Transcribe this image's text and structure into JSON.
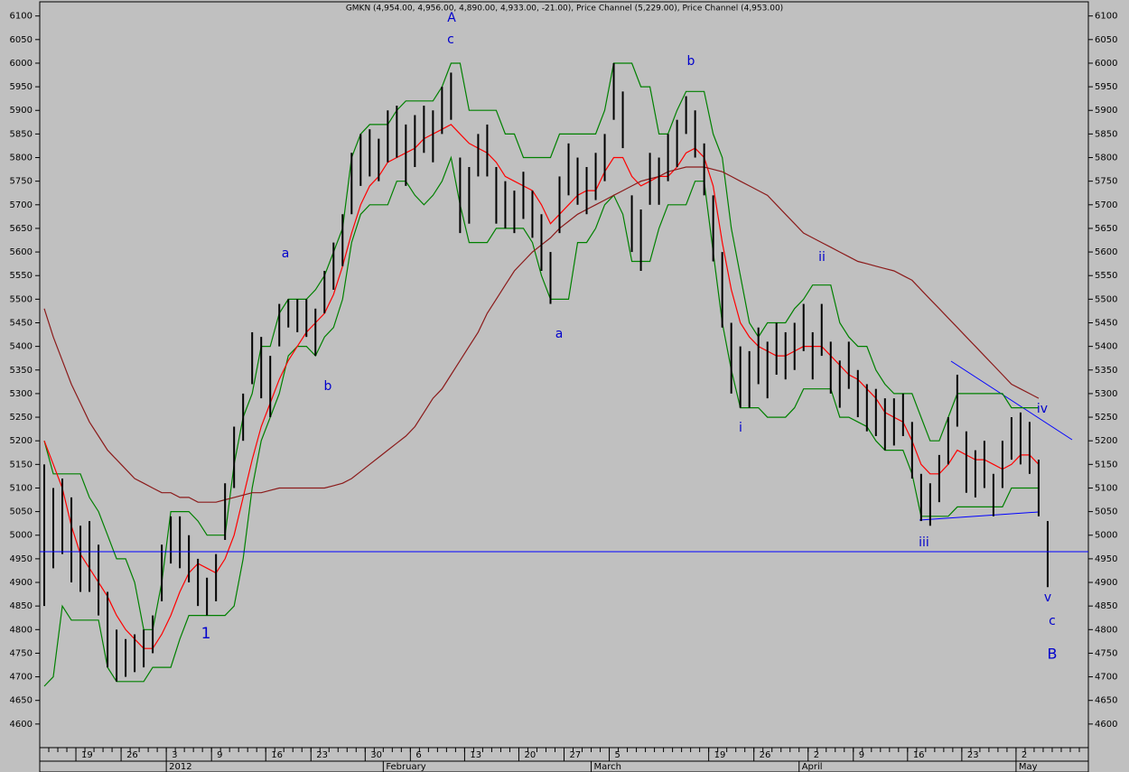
{
  "chart_data": {
    "type": "ohlc",
    "title": "GMKN (4,954.00, 4,956.00, 4,890.00, 4,933.00, -21.00), Price Channel (5,229.00), Price Channel (4,953.00)",
    "categories": [
      null,
      null,
      null,
      null,
      "19",
      null,
      null,
      null,
      null,
      "26",
      null,
      null,
      null,
      null,
      "3",
      null,
      null,
      null,
      null,
      "9",
      null,
      null,
      null,
      null,
      null,
      "16",
      null,
      null,
      null,
      null,
      "23",
      null,
      null,
      null,
      null,
      null,
      "30",
      null,
      null,
      null,
      null,
      "6",
      null,
      null,
      null,
      null,
      null,
      "13",
      null,
      null,
      null,
      null,
      null,
      "20",
      null,
      null,
      null,
      null,
      "27",
      null,
      null,
      null,
      null,
      "5",
      null,
      null,
      null,
      null,
      null,
      null,
      null,
      null,
      null,
      null,
      "19",
      null,
      null,
      null,
      null,
      "26",
      null,
      null,
      null,
      null,
      null,
      "2",
      null,
      null,
      null,
      null,
      "9",
      null,
      null,
      null,
      null,
      null,
      "16",
      null,
      null,
      null,
      null,
      null,
      "23",
      null,
      null,
      null,
      null,
      null,
      "2",
      null,
      null,
      null,
      null,
      null,
      null,
      null
    ],
    "month_labels": [
      null,
      null,
      null,
      null,
      null,
      null,
      null,
      null,
      null,
      null,
      null,
      null,
      null,
      null,
      "2012",
      null,
      null,
      null,
      null,
      null,
      null,
      null,
      null,
      null,
      null,
      null,
      null,
      null,
      null,
      null,
      null,
      null,
      null,
      null,
      null,
      null,
      null,
      null,
      "February",
      null,
      null,
      null,
      null,
      null,
      null,
      null,
      null,
      null,
      null,
      null,
      null,
      null,
      null,
      null,
      null,
      null,
      null,
      null,
      null,
      null,
      null,
      "March",
      null,
      null,
      null,
      null,
      null,
      null,
      null,
      null,
      null,
      null,
      null,
      null,
      null,
      null,
      null,
      null,
      null,
      null,
      null,
      null,
      null,
      null,
      "April",
      null,
      null,
      null,
      null,
      null,
      null,
      null,
      null,
      null,
      null,
      null,
      null,
      null,
      null,
      null,
      null,
      null,
      null,
      null,
      null,
      null,
      null,
      null,
      "May",
      null,
      null,
      null,
      null,
      null,
      null,
      null
    ],
    "high": [
      5150,
      5100,
      5120,
      5080,
      5020,
      5030,
      4980,
      4880,
      4800,
      4780,
      4790,
      4800,
      4830,
      4980,
      5040,
      5040,
      5000,
      4950,
      4910,
      4960,
      5110,
      5230,
      5300,
      5430,
      5420,
      5380,
      5490,
      5500,
      5500,
      5500,
      5480,
      5560,
      5620,
      5680,
      5810,
      5850,
      5860,
      5840,
      5900,
      5910,
      5870,
      5890,
      5910,
      5900,
      5950,
      5980,
      5800,
      5780,
      5850,
      5870,
      5780,
      5750,
      5730,
      5770,
      5730,
      5680,
      5600,
      5760,
      5830,
      5800,
      5780,
      5810,
      5850,
      6000,
      5940,
      5720,
      5690,
      5810,
      5800,
      5850,
      5880,
      5930,
      5900,
      5830,
      5720,
      5600,
      5450,
      5400,
      5390,
      5440,
      5410,
      5450,
      5430,
      5450,
      5490,
      5430,
      5490,
      5410,
      5370,
      5410,
      5350,
      5320,
      5310,
      5290,
      5290,
      5300,
      5240,
      5130,
      5110,
      5170,
      5250,
      5340,
      5220,
      5180,
      5200,
      5130,
      5200,
      5250,
      5260,
      5240,
      5160,
      5030,
      null,
      null,
      null,
      null
    ],
    "low": [
      4850,
      4930,
      4960,
      4900,
      4880,
      4880,
      4830,
      4720,
      4690,
      4700,
      4710,
      4720,
      4750,
      4860,
      4940,
      4930,
      4900,
      4850,
      4830,
      4860,
      4990,
      5100,
      5200,
      5320,
      5290,
      5250,
      5400,
      5440,
      5430,
      5420,
      5380,
      5470,
      5520,
      5570,
      5680,
      5740,
      5760,
      5750,
      5790,
      5800,
      5740,
      5780,
      5810,
      5790,
      5850,
      5880,
      5640,
      5660,
      5760,
      5760,
      5660,
      5650,
      5640,
      5670,
      5630,
      5560,
      5490,
      5640,
      5720,
      5700,
      5680,
      5710,
      5750,
      5880,
      5820,
      5600,
      5560,
      5700,
      5700,
      5750,
      5780,
      5850,
      5800,
      5720,
      5580,
      5440,
      5300,
      5270,
      5270,
      5320,
      5290,
      5340,
      5330,
      5350,
      5390,
      5330,
      5380,
      5300,
      5270,
      5310,
      5250,
      5220,
      5210,
      5180,
      5190,
      5210,
      5120,
      5030,
      5020,
      5070,
      5150,
      5230,
      5090,
      5080,
      5100,
      5040,
      5100,
      5160,
      5150,
      5130,
      5040,
      4890,
      null,
      null,
      null,
      null
    ],
    "series": [
      {
        "color": "#008000",
        "values": [
          5200,
          5130,
          5130,
          5130,
          5130,
          5080,
          5050,
          5000,
          4950,
          4950,
          4900,
          4800,
          4800,
          4900,
          5050,
          5050,
          5050,
          5030,
          5000,
          5000,
          5000,
          5150,
          5250,
          5300,
          5400,
          5400,
          5470,
          5500,
          5500,
          5500,
          5520,
          5550,
          5600,
          5650,
          5800,
          5850,
          5870,
          5870,
          5870,
          5900,
          5920,
          5920,
          5920,
          5920,
          5950,
          6000,
          6000,
          5900,
          5900,
          5900,
          5900,
          5850,
          5850,
          5800,
          5800,
          5800,
          5800,
          5850,
          5850,
          5850,
          5850,
          5850,
          5900,
          6000,
          6000,
          6000,
          5950,
          5950,
          5850,
          5850,
          5900,
          5940,
          5940,
          5940,
          5850,
          5800,
          5650,
          5550,
          5450,
          5420,
          5450,
          5450,
          5450,
          5480,
          5500,
          5530,
          5530,
          5530,
          5450,
          5420,
          5400,
          5400,
          5350,
          5320,
          5300,
          5300,
          5300,
          5250,
          5200,
          5200,
          5250,
          5300,
          5300,
          5300,
          5300,
          5300,
          5300,
          5270,
          5270,
          5270,
          5270,
          null,
          null,
          null,
          null,
          null
        ]
      },
      {
        "color": "#008000",
        "values": [
          4680,
          4700,
          4850,
          4820,
          4820,
          4820,
          4820,
          4720,
          4690,
          4690,
          4690,
          4690,
          4720,
          4720,
          4720,
          4780,
          4830,
          4830,
          4830,
          4830,
          4830,
          4850,
          4950,
          5100,
          5200,
          5250,
          5300,
          5380,
          5400,
          5400,
          5380,
          5420,
          5440,
          5500,
          5620,
          5680,
          5700,
          5700,
          5700,
          5750,
          5750,
          5720,
          5700,
          5720,
          5750,
          5800,
          5700,
          5620,
          5620,
          5620,
          5650,
          5650,
          5650,
          5650,
          5620,
          5550,
          5500,
          5500,
          5500,
          5620,
          5620,
          5650,
          5700,
          5720,
          5680,
          5580,
          5580,
          5580,
          5650,
          5700,
          5700,
          5700,
          5750,
          5750,
          5600,
          5450,
          5350,
          5270,
          5270,
          5270,
          5250,
          5250,
          5250,
          5270,
          5310,
          5310,
          5310,
          5310,
          5250,
          5250,
          5240,
          5230,
          5200,
          5180,
          5180,
          5180,
          5130,
          5040,
          5040,
          5040,
          5040,
          5060,
          5060,
          5060,
          5060,
          5060,
          5060,
          5100,
          5100,
          5100,
          5100,
          null,
          null,
          null,
          null,
          null
        ]
      },
      {
        "color": "#ff0000",
        "values": [
          5200,
          5150,
          5100,
          5020,
          4960,
          4930,
          4900,
          4870,
          4830,
          4800,
          4780,
          4760,
          4760,
          4790,
          4830,
          4880,
          4920,
          4940,
          4930,
          4920,
          4950,
          5000,
          5080,
          5160,
          5230,
          5280,
          5330,
          5370,
          5400,
          5430,
          5450,
          5470,
          5510,
          5570,
          5640,
          5700,
          5740,
          5760,
          5790,
          5800,
          5810,
          5820,
          5840,
          5850,
          5860,
          5870,
          5850,
          5830,
          5820,
          5810,
          5790,
          5760,
          5750,
          5740,
          5730,
          5700,
          5660,
          5680,
          5700,
          5720,
          5730,
          5730,
          5770,
          5800,
          5800,
          5760,
          5740,
          5750,
          5760,
          5760,
          5780,
          5810,
          5820,
          5800,
          5740,
          5620,
          5520,
          5450,
          5420,
          5400,
          5390,
          5380,
          5380,
          5390,
          5400,
          5400,
          5400,
          5380,
          5360,
          5340,
          5330,
          5310,
          5290,
          5260,
          5250,
          5240,
          5200,
          5150,
          5130,
          5130,
          5150,
          5180,
          5170,
          5160,
          5160,
          5150,
          5140,
          5150,
          5170,
          5170,
          5150,
          null,
          null,
          null,
          null,
          null
        ]
      },
      {
        "color": "#8b1a1a",
        "values": [
          5480,
          5420,
          5370,
          5320,
          5280,
          5240,
          5210,
          5180,
          5160,
          5140,
          5120,
          5110,
          5100,
          5090,
          5090,
          5080,
          5080,
          5070,
          5070,
          5070,
          5075,
          5080,
          5085,
          5090,
          5090,
          5095,
          5100,
          5100,
          5100,
          5100,
          5100,
          5100,
          5105,
          5110,
          5120,
          5135,
          5150,
          5165,
          5180,
          5195,
          5210,
          5230,
          5260,
          5290,
          5310,
          5340,
          5370,
          5400,
          5430,
          5470,
          5500,
          5530,
          5560,
          5580,
          5600,
          5615,
          5630,
          5650,
          5665,
          5680,
          5690,
          5700,
          5710,
          5720,
          5730,
          5740,
          5750,
          5755,
          5760,
          5770,
          5775,
          5780,
          5780,
          5780,
          5775,
          5770,
          5760,
          5750,
          5740,
          5730,
          5720,
          5700,
          5680,
          5660,
          5640,
          5630,
          5620,
          5610,
          5600,
          5590,
          5580,
          5575,
          5570,
          5565,
          5560,
          5550,
          5540,
          5520,
          5500,
          5480,
          5460,
          5440,
          5420,
          5400,
          5380,
          5360,
          5340,
          5320,
          5310,
          5300,
          5290,
          null,
          null,
          null,
          null,
          null
        ]
      }
    ],
    "hline": {
      "value": 4965,
      "color": "#0000ff"
    },
    "annotations": [
      "A",
      "c",
      "b",
      "a",
      "b",
      "1",
      "a",
      "ii",
      "i",
      "iii",
      "iv",
      "v",
      "c",
      "B"
    ],
    "ylim": [
      4550,
      6130
    ],
    "yticks": [
      4600,
      4650,
      4700,
      4750,
      4800,
      4850,
      4900,
      4950,
      5000,
      5050,
      5100,
      5150,
      5200,
      5250,
      5300,
      5350,
      5400,
      5450,
      5500,
      5550,
      5600,
      5650,
      5700,
      5750,
      5800,
      5850,
      5900,
      5950,
      6000,
      6050,
      6100
    ]
  }
}
